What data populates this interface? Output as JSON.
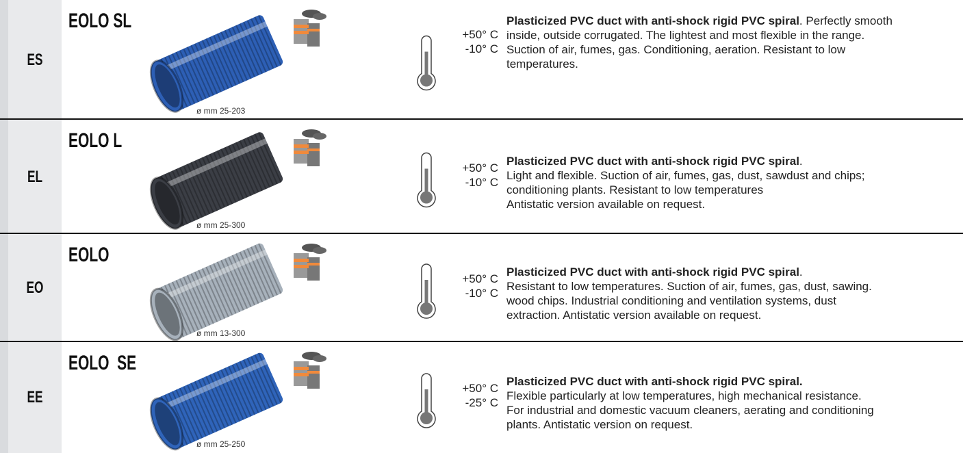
{
  "rows": [
    {
      "code": "ES",
      "name": "EOLO SL",
      "diameter": "ø mm 25-203",
      "temp_max": "+50° C",
      "temp_min": "-10° C",
      "hose_color": "#2d5fb5",
      "bold": "Plasticized PVC duct with anti-shock rigid PVC spiral",
      "after_bold": ". Perfectly smooth",
      "lines": [
        "inside, outside corrugated. The lightest and most flexible in the range.",
        "Suction of air, fumes, gas. Conditioning, aeration. Resistant to low",
        "temperatures."
      ]
    },
    {
      "code": "EL",
      "name": "EOLO L",
      "diameter": "ø mm 25-300",
      "temp_max": "+50° C",
      "temp_min": "-10° C",
      "hose_color": "#3b3e45",
      "bold": "Plasticized PVC duct with anti-shock rigid PVC spiral",
      "after_bold": ".",
      "lines": [
        "Light and flexible. Suction of air, fumes, gas, dust, sawdust and chips;",
        "conditioning plants. Resistant to low temperatures",
        "Antistatic version available on request."
      ]
    },
    {
      "code": "EO",
      "name": "EOLO",
      "diameter": "ø mm 13-300",
      "temp_max": "+50° C",
      "temp_min": "-10° C",
      "hose_color": "#a7b1bb",
      "bold": "Plasticized PVC duct with anti-shock rigid PVC spiral",
      "after_bold": ".",
      "lines": [
        "Resistant to low temperatures. Suction of air, fumes, gas, dust, sawing.",
        "wood chips. Industrial conditioning and ventilation systems, dust",
        "extraction. Antistatic version available on request."
      ]
    },
    {
      "code": "EE",
      "name": "EOLO  SE",
      "diameter": "ø mm 25-250",
      "temp_max": "+50° C",
      "temp_min": "-25° C",
      "hose_color": "#2f64ba",
      "bold": "Plasticized PVC duct with anti-shock rigid PVC spiral.",
      "lines": [
        "Flexible particularly at low temperatures, high mechanical resistance.",
        "For industrial and domestic vacuum cleaners, aerating and conditioning",
        "plants. Antistatic version on request."
      ]
    }
  ]
}
